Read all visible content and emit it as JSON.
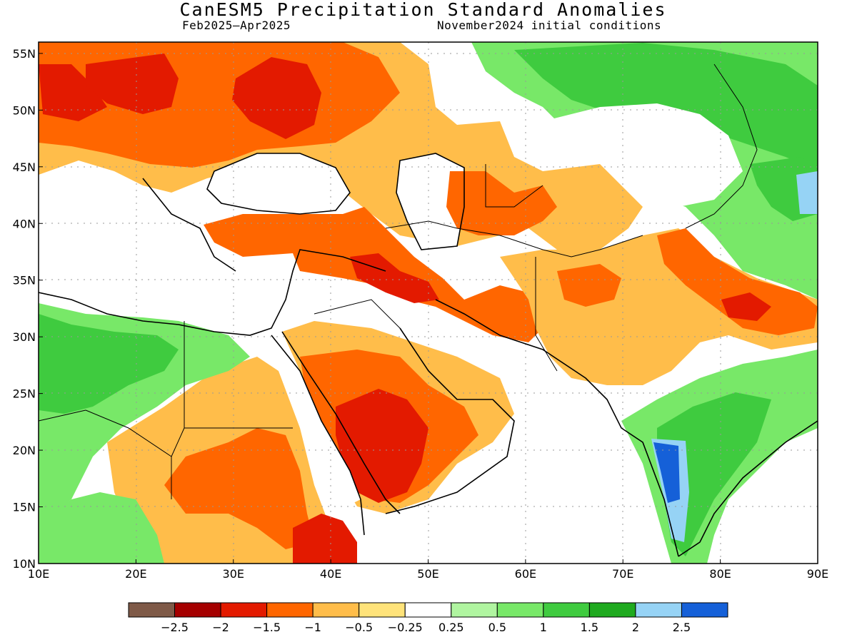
{
  "title": "CanESM5 Precipitation Standard Anomalies",
  "period": "Feb2025–Apr2025",
  "initial_conditions": "November2024 initial conditions",
  "map": {
    "region": "Middle East, Southwest & Central Asia, Northeast Africa",
    "lon_range": [
      10,
      90
    ],
    "lat_range": [
      10,
      56
    ],
    "lon_labels": [
      "10E",
      "20E",
      "30E",
      "40E",
      "50E",
      "60E",
      "70E",
      "80E",
      "90E"
    ],
    "lat_labels": [
      "10N",
      "15N",
      "20N",
      "25N",
      "30N",
      "35N",
      "40N",
      "45N",
      "50N",
      "55N"
    ]
  },
  "colorbar": {
    "colors": [
      "#7f5a48",
      "#a50000",
      "#e31a00",
      "#ff6600",
      "#ffbd4a",
      "#ffe37a",
      "#ffffff",
      "#b0f5a0",
      "#78e868",
      "#3fcb3f",
      "#1faa1f",
      "#96d3f5",
      "#1560d8"
    ],
    "labels": [
      "−2.5",
      "−2",
      "−1.5",
      "−1",
      "−0.5",
      "−0.25",
      "0.25",
      "0.5",
      "1",
      "1.5",
      "2",
      "2.5"
    ]
  }
}
